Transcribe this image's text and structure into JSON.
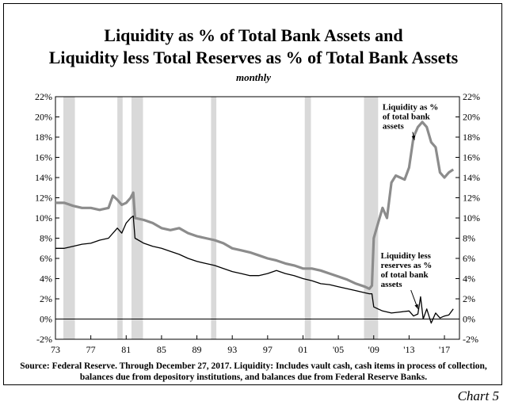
{
  "title_line1": "Liquidity as % of Total Bank Assets and",
  "title_line2": "Liquidity less Total Reserves as % of Total Bank Assets",
  "subtitle": "monthly",
  "source": "Source: Federal Reserve. Through December 27, 2017.  Liquidity: Includes vault cash, cash items in process of collection, balances due from depository institutions, and balances due from Federal Reserve Banks.",
  "chart_label": "Chart 5",
  "colors": {
    "liquidity": "#8c8c8c",
    "less_reserves": "#000000",
    "recession": "#d9d9d9"
  },
  "chart_data": {
    "type": "line",
    "xlim": [
      1973,
      2018.7
    ],
    "ylim": [
      -2,
      22
    ],
    "y_ticks": [
      -2,
      0,
      2,
      4,
      6,
      8,
      10,
      12,
      14,
      16,
      18,
      20,
      22
    ],
    "y_tick_labels": [
      "-2%",
      "0%",
      "2%",
      "4%",
      "6%",
      "8%",
      "10%",
      "12%",
      "14%",
      "16%",
      "18%",
      "20%",
      "22%"
    ],
    "x_ticks": [
      1973,
      1977,
      1981,
      1985,
      1989,
      1993,
      1997,
      2001,
      2005,
      2009,
      2013,
      2017
    ],
    "x_tick_labels": [
      "73",
      "77",
      "81",
      "85",
      "89",
      "93",
      "97",
      "01",
      "'05",
      "'09",
      "'13",
      "'17"
    ],
    "recessions": [
      [
        1973.9,
        1975.2
      ],
      [
        1980.0,
        1980.6
      ],
      [
        1981.6,
        1982.9
      ],
      [
        1990.6,
        1991.2
      ],
      [
        2001.2,
        2001.9
      ],
      [
        2007.9,
        2009.5
      ]
    ],
    "annotations": [
      {
        "lines": [
          "Liquidity as %",
          "of total bank",
          "assets"
        ],
        "x": 2010.0,
        "y": 20.7,
        "arrow_to": [
          2013.6,
          17.7
        ]
      },
      {
        "lines": [
          "Liquidity less",
          "reserves as %",
          "of total bank",
          "assets"
        ],
        "x": 2009.8,
        "y": 6.0,
        "arrow_to": [
          2014.0,
          1.0
        ]
      }
    ],
    "series": [
      {
        "name": "Liquidity as % of total bank assets",
        "x": [
          1973.0,
          1974.0,
          1975.0,
          1976.0,
          1977.0,
          1978.0,
          1979.0,
          1979.5,
          1980.0,
          1980.5,
          1981.0,
          1981.5,
          1981.8,
          1982.0,
          1983.0,
          1984.0,
          1985.0,
          1986.0,
          1987.0,
          1988.0,
          1989.0,
          1990.0,
          1991.0,
          1992.0,
          1993.0,
          1994.0,
          1995.0,
          1996.0,
          1997.0,
          1998.0,
          1999.0,
          2000.0,
          2001.0,
          2002.0,
          2003.0,
          2004.0,
          2005.0,
          2006.0,
          2007.0,
          2008.0,
          2008.5,
          2008.8,
          2009.0,
          2009.5,
          2010.0,
          2010.5,
          2011.0,
          2011.5,
          2012.0,
          2012.5,
          2013.0,
          2013.5,
          2014.0,
          2014.5,
          2015.0,
          2015.5,
          2016.0,
          2016.5,
          2017.0,
          2017.5,
          2018.0
        ],
        "values": [
          11.5,
          11.5,
          11.2,
          11.0,
          11.0,
          10.8,
          11.0,
          12.2,
          11.8,
          11.3,
          11.5,
          12.0,
          12.5,
          10.0,
          9.8,
          9.5,
          9.0,
          8.8,
          9.0,
          8.5,
          8.2,
          8.0,
          7.8,
          7.5,
          7.0,
          6.8,
          6.6,
          6.3,
          6.0,
          5.8,
          5.5,
          5.3,
          5.0,
          5.0,
          4.8,
          4.5,
          4.2,
          3.9,
          3.5,
          3.2,
          3.0,
          3.3,
          8.0,
          9.5,
          11.0,
          10.0,
          13.5,
          14.2,
          14.0,
          13.8,
          15.0,
          18.0,
          19.0,
          19.5,
          19.0,
          17.5,
          17.0,
          14.5,
          14.0,
          14.5,
          14.8
        ]
      },
      {
        "name": "Liquidity less reserves as % of total bank assets",
        "x": [
          1973.0,
          1974.0,
          1975.0,
          1976.0,
          1977.0,
          1978.0,
          1979.0,
          1980.0,
          1980.5,
          1981.0,
          1981.5,
          1981.8,
          1982.0,
          1983.0,
          1984.0,
          1985.0,
          1986.0,
          1987.0,
          1988.0,
          1989.0,
          1990.0,
          1991.0,
          1992.0,
          1993.0,
          1994.0,
          1995.0,
          1996.0,
          1997.0,
          1998.0,
          1999.0,
          2000.0,
          2001.0,
          2002.0,
          2003.0,
          2004.0,
          2005.0,
          2006.0,
          2007.0,
          2008.0,
          2008.5,
          2008.8,
          2009.0,
          2009.5,
          2010.0,
          2011.0,
          2012.0,
          2013.0,
          2013.5,
          2014.0,
          2014.3,
          2014.6,
          2015.0,
          2015.5,
          2016.0,
          2016.5,
          2017.0,
          2017.5,
          2018.0
        ],
        "values": [
          7.0,
          7.0,
          7.2,
          7.4,
          7.5,
          7.8,
          8.0,
          9.0,
          8.5,
          9.5,
          10.0,
          10.2,
          8.0,
          7.5,
          7.2,
          7.0,
          6.7,
          6.4,
          6.0,
          5.7,
          5.5,
          5.3,
          5.0,
          4.7,
          4.5,
          4.3,
          4.3,
          4.5,
          4.8,
          4.5,
          4.3,
          4.0,
          3.8,
          3.5,
          3.4,
          3.2,
          3.0,
          2.8,
          2.6,
          2.5,
          2.5,
          1.2,
          1.0,
          0.8,
          0.6,
          0.7,
          0.8,
          0.3,
          0.5,
          2.2,
          0.0,
          1.0,
          -0.4,
          0.6,
          0.1,
          0.3,
          0.4,
          1.0
        ]
      }
    ]
  }
}
